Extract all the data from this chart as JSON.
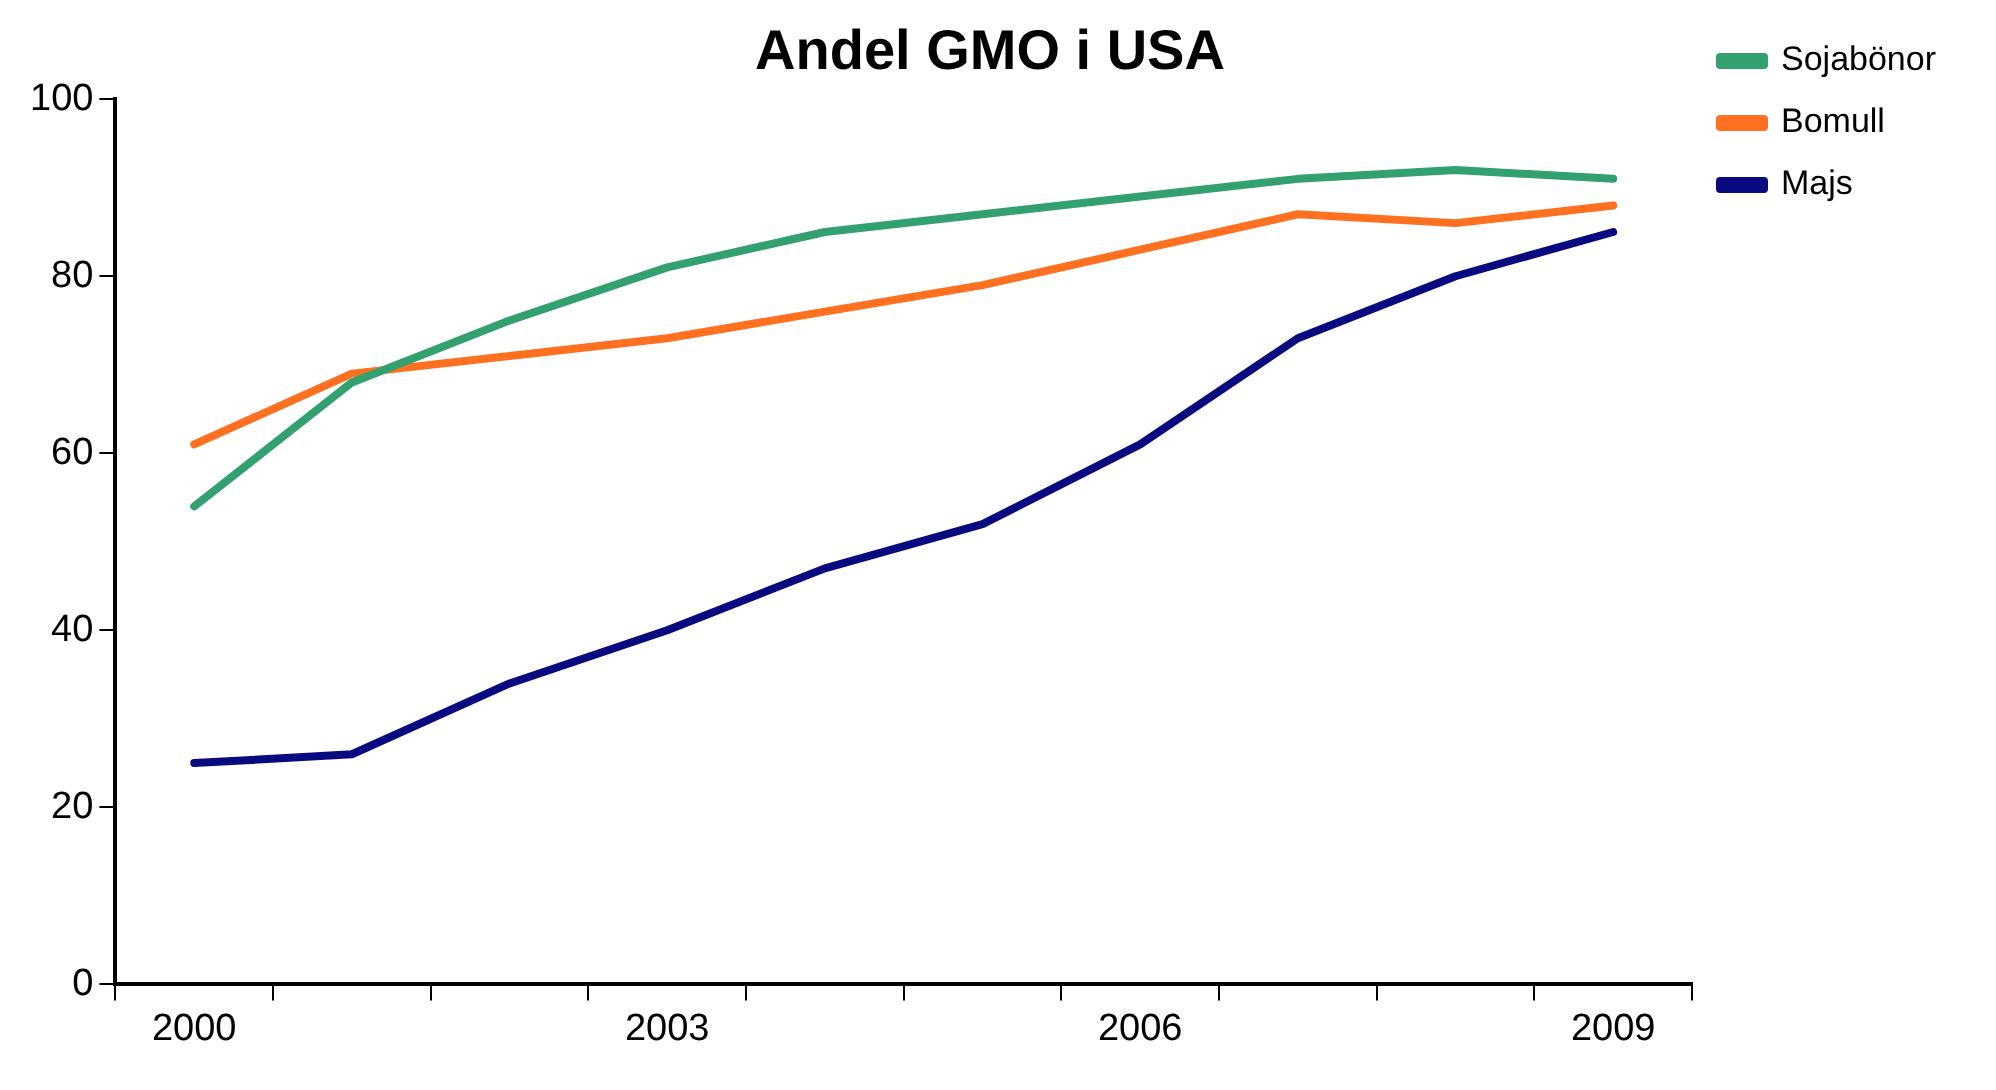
{
  "chart_data": {
    "type": "line",
    "title": "Andel GMO i USA",
    "categories": [
      "2000",
      null,
      null,
      "2003",
      null,
      null,
      "2006",
      null,
      null,
      "2009"
    ],
    "series": [
      {
        "name": "Sojabönor",
        "color": "#33a06f",
        "values": [
          54,
          68,
          75,
          81,
          85,
          87,
          89,
          91,
          92,
          91
        ]
      },
      {
        "name": "Bomull",
        "color": "#ff7020",
        "values": [
          61,
          69,
          71,
          73,
          76,
          79,
          83,
          87,
          86,
          88
        ]
      },
      {
        "name": "Majs",
        "color": "#0a0a80",
        "values": [
          25,
          26,
          34,
          40,
          47,
          52,
          61,
          73,
          80,
          85
        ]
      }
    ],
    "ylim": [
      0,
      100
    ],
    "yticks": [
      0,
      20,
      40,
      60,
      80,
      100
    ],
    "grid": false,
    "legend": "top right",
    "marker": "none",
    "line_style": "solid"
  }
}
